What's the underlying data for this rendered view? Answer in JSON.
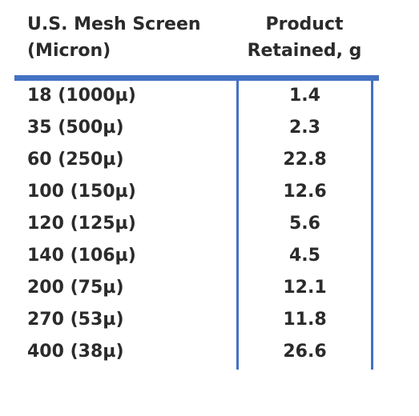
{
  "table": {
    "headers": {
      "mesh_line1": "U.S. Mesh Screen",
      "mesh_line2": "(Micron)",
      "retained_line1": "Product",
      "retained_line2": "Retained, g"
    },
    "rows": [
      {
        "mesh": "18 (1000µ)",
        "retained": "1.4"
      },
      {
        "mesh": "35 (500µ)",
        "retained": "2.3"
      },
      {
        "mesh": "60 (250µ)",
        "retained": "22.8"
      },
      {
        "mesh": "100 (150µ)",
        "retained": "12.6"
      },
      {
        "mesh": "120 (125µ)",
        "retained": "5.6"
      },
      {
        "mesh": "140 (106µ)",
        "retained": "4.5"
      },
      {
        "mesh": "200 (75µ)",
        "retained": "12.1"
      },
      {
        "mesh": "270 (53µ)",
        "retained": "11.8"
      },
      {
        "mesh": "400 (38µ)",
        "retained": "26.6"
      }
    ],
    "colors": {
      "rule": "#4472c4",
      "text": "#2b2b2b"
    }
  }
}
